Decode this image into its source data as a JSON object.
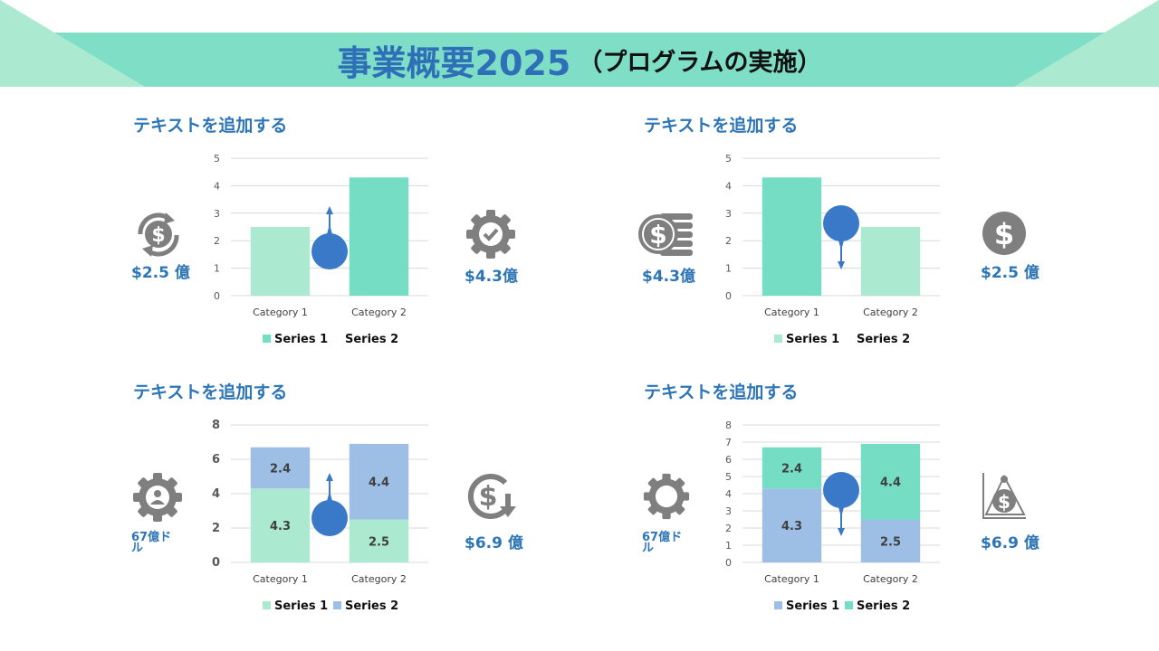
{
  "header": {
    "title_main": "事業概要2025",
    "title_sub": "（プログラムの実施）"
  },
  "colors": {
    "teal": "#74DDC4",
    "mint": "#ABEAD1",
    "blue": "#9DBFE6",
    "pin": "#3A78C8",
    "text_blue": "#2E75B6",
    "icon_gray": "#7F7F7F"
  },
  "panels": [
    {
      "title": "テキストを追加する",
      "left_value": "$2.5 億",
      "right_value": "$4.3億",
      "left_icon": "dollar-cycle-icon",
      "right_icon": "gear-check-icon"
    },
    {
      "title": "テキストを追加する",
      "left_value": "$4.3億",
      "right_value": "$2.5 億",
      "left_icon": "coin-stack-icon",
      "right_icon": "dollar-circle-icon"
    },
    {
      "title": "テキストを追加する",
      "left_value": "67億ドル",
      "right_value": "$6.9 億",
      "left_icon": "gear-person-icon",
      "right_icon": "dollar-down-icon"
    },
    {
      "title": "テキストを追加する",
      "left_value": "67億ドル",
      "right_value": "$6.9 億",
      "left_icon": "gear-icon",
      "right_icon": "dollar-chart-icon"
    }
  ],
  "chart_data": [
    {
      "type": "bar",
      "categories": [
        "Category 1",
        "Category 2"
      ],
      "series": [
        {
          "name": "Series 1",
          "values": [
            2.5,
            null
          ],
          "color": "#ABEAD1"
        },
        {
          "name": "Series 2",
          "values": [
            null,
            4.3
          ],
          "color": "#74DDC4"
        }
      ],
      "legend_colors": [
        "#74DDC4",
        null
      ],
      "yticks": [
        0,
        1,
        2,
        3,
        4,
        5
      ],
      "ylim": [
        0,
        5
      ],
      "arrow": "up",
      "legend": "bottom"
    },
    {
      "type": "bar",
      "categories": [
        "Category 1",
        "Category 2"
      ],
      "series": [
        {
          "name": "Series 1",
          "values": [
            4.3,
            null
          ],
          "color": "#74DDC4"
        },
        {
          "name": "Series 2",
          "values": [
            null,
            2.5
          ],
          "color": "#ABEAD1"
        }
      ],
      "legend_colors": [
        "#ABEAD1",
        null
      ],
      "yticks": [
        0,
        1,
        2,
        3,
        4,
        5
      ],
      "ylim": [
        0,
        5
      ],
      "arrow": "down",
      "legend": "bottom"
    },
    {
      "type": "stacked-bar",
      "categories": [
        "Category 1",
        "Category 2"
      ],
      "series": [
        {
          "name": "Series 1",
          "values": [
            4.3,
            2.5
          ],
          "color": "#ABEAD1"
        },
        {
          "name": "Series 2",
          "values": [
            2.4,
            4.4
          ],
          "color": "#9DBFE6"
        }
      ],
      "legend_colors": [
        "#ABEAD1",
        "#9DBFE6"
      ],
      "yticks": [
        0,
        2,
        4,
        6,
        8
      ],
      "ylim": [
        0,
        8
      ],
      "arrow": "up",
      "legend": "bottom"
    },
    {
      "type": "stacked-bar",
      "categories": [
        "Category 1",
        "Category 2"
      ],
      "series": [
        {
          "name": "Series 1",
          "values": [
            4.3,
            2.5
          ],
          "color": "#9DBFE6"
        },
        {
          "name": "Series 2",
          "values": [
            2.4,
            4.4
          ],
          "color": "#74DDC4"
        }
      ],
      "legend_colors": [
        "#9DBFE6",
        "#74DDC4"
      ],
      "yticks": [
        0,
        1,
        2,
        3,
        4,
        5,
        6,
        7,
        8
      ],
      "ylim": [
        0,
        8
      ],
      "arrow": "down",
      "legend": "bottom"
    }
  ]
}
